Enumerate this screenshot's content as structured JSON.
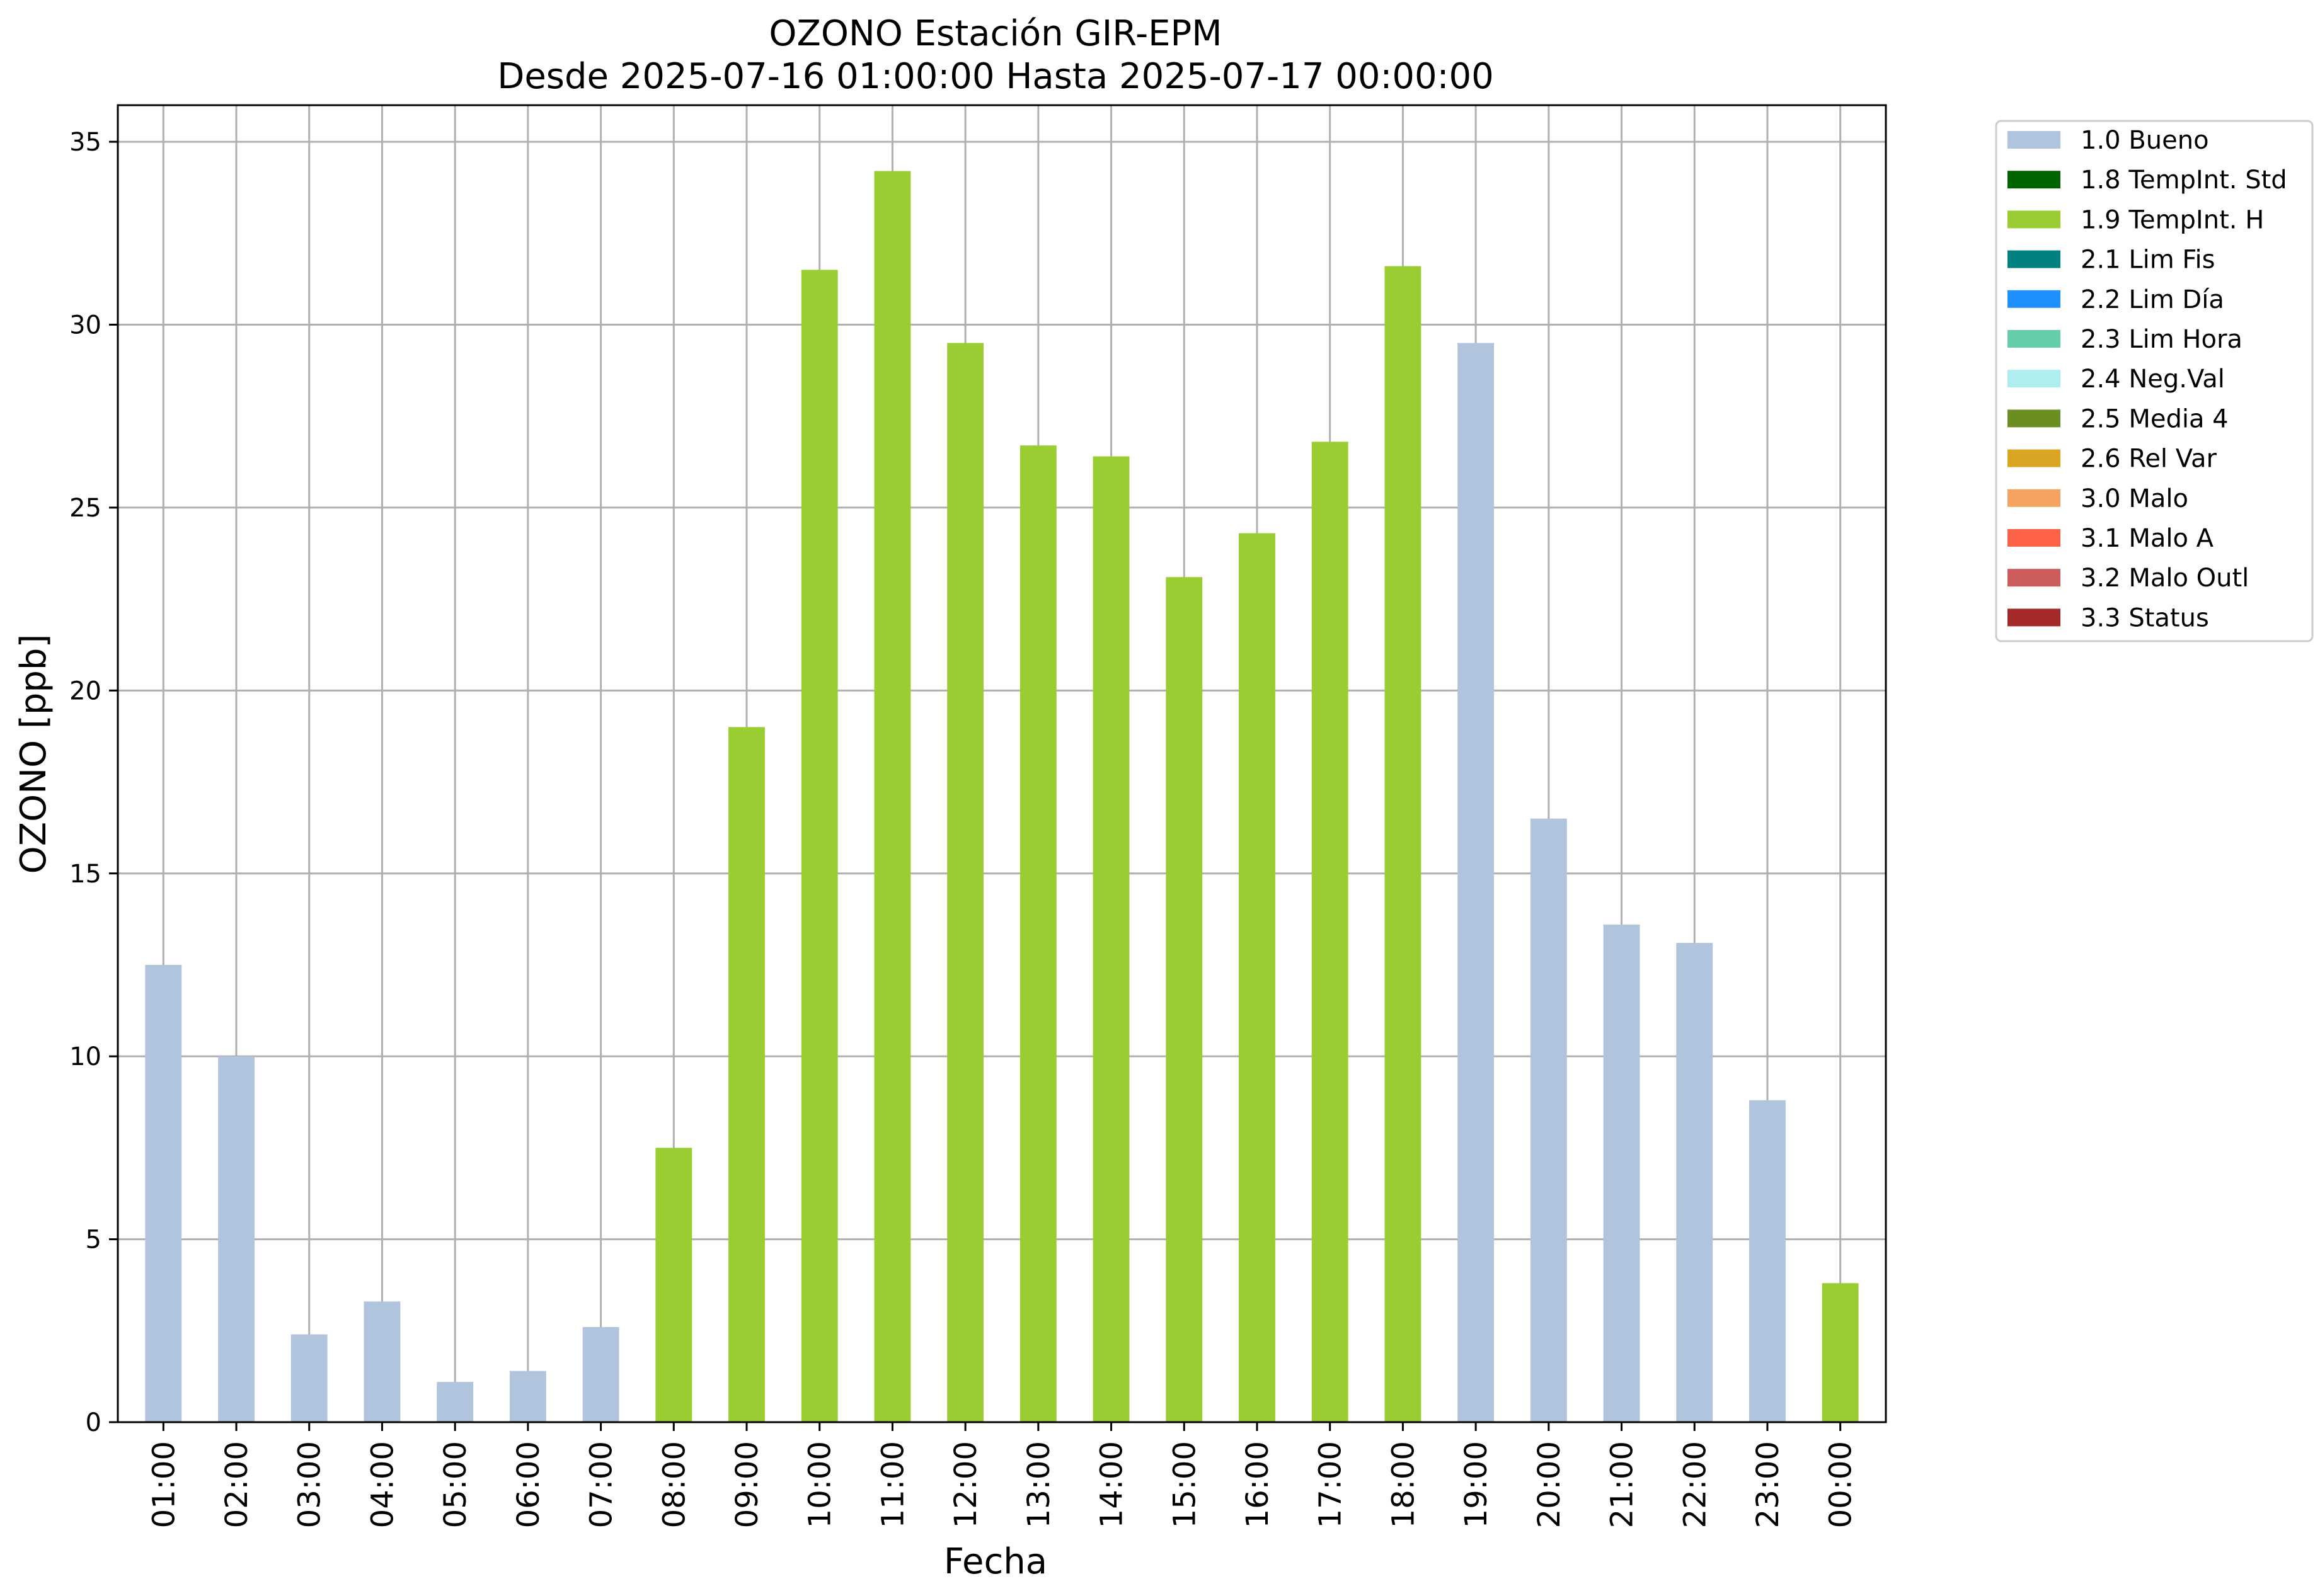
{
  "chart_data": {
    "type": "bar",
    "title": "OZONO Estación GIR-EPM",
    "subtitle": "Desde 2025-07-16 01:00:00 Hasta 2025-07-17 00:00:00",
    "xlabel": "Fecha",
    "ylabel": "OZONO [ppb]",
    "ylim": [
      0,
      36
    ],
    "yticks": [
      0,
      5,
      10,
      15,
      20,
      25,
      30,
      35
    ],
    "grid": true,
    "legend_position": "outside-top-right",
    "categories": [
      "01:00",
      "02:00",
      "03:00",
      "04:00",
      "05:00",
      "06:00",
      "07:00",
      "08:00",
      "09:00",
      "10:00",
      "11:00",
      "12:00",
      "13:00",
      "14:00",
      "15:00",
      "16:00",
      "17:00",
      "18:00",
      "19:00",
      "20:00",
      "21:00",
      "22:00",
      "23:00",
      "00:00"
    ],
    "values": [
      12.5,
      10.0,
      2.4,
      3.3,
      1.1,
      1.4,
      2.6,
      7.5,
      19.0,
      31.5,
      34.2,
      29.5,
      26.7,
      26.4,
      23.1,
      24.3,
      26.8,
      31.6,
      29.5,
      16.5,
      13.6,
      13.1,
      8.8,
      3.8
    ],
    "flags": [
      "1.0 Bueno",
      "1.0 Bueno",
      "1.0 Bueno",
      "1.0 Bueno",
      "1.0 Bueno",
      "1.0 Bueno",
      "1.0 Bueno",
      "1.9 TempInt. H",
      "1.9 TempInt. H",
      "1.9 TempInt. H",
      "1.9 TempInt. H",
      "1.9 TempInt. H",
      "1.9 TempInt. H",
      "1.9 TempInt. H",
      "1.9 TempInt. H",
      "1.9 TempInt. H",
      "1.9 TempInt. H",
      "1.9 TempInt. H",
      "1.0 Bueno",
      "1.0 Bueno",
      "1.0 Bueno",
      "1.0 Bueno",
      "1.0 Bueno",
      "1.9 TempInt. H"
    ],
    "legend": [
      {
        "label": "1.0 Bueno",
        "color": "#b0c4de"
      },
      {
        "label": "1.8 TempInt. Std",
        "color": "#006400"
      },
      {
        "label": "1.9 TempInt. H",
        "color": "#9acd32"
      },
      {
        "label": "2.1 Lim Fis",
        "color": "#008080"
      },
      {
        "label": "2.2 Lim Día",
        "color": "#1e90ff"
      },
      {
        "label": "2.3 Lim Hora",
        "color": "#66cdaa"
      },
      {
        "label": "2.4 Neg.Val",
        "color": "#afeeee"
      },
      {
        "label": "2.5 Media 4",
        "color": "#6b8e23"
      },
      {
        "label": "2.6 Rel Var",
        "color": "#daa520"
      },
      {
        "label": "3.0 Malo",
        "color": "#f4a460"
      },
      {
        "label": "3.1 Malo A",
        "color": "#ff6347"
      },
      {
        "label": "3.2 Malo Outl",
        "color": "#cd5c5c"
      },
      {
        "label": "3.3 Status",
        "color": "#a52a2a"
      }
    ]
  }
}
